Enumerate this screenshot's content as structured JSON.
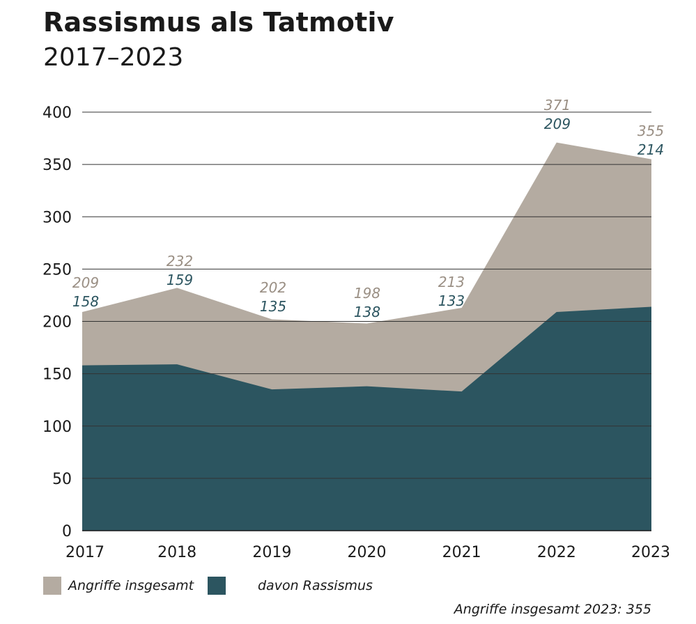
{
  "chart_data": {
    "type": "area",
    "title": "Rassismus als Tatmotiv",
    "subtitle": "2017–2023",
    "categories": [
      "2017",
      "2018",
      "2019",
      "2020",
      "2021",
      "2022",
      "2023"
    ],
    "series": [
      {
        "name": "Angriffe insgesamt",
        "values": [
          209,
          232,
          202,
          198,
          213,
          371,
          355
        ],
        "color": "#b4aba1",
        "label_color": "#9a8f84"
      },
      {
        "name": "davon Rassismus",
        "values": [
          158,
          159,
          135,
          138,
          133,
          209,
          214
        ],
        "color": "#2c5560",
        "label_color": "#2c5560"
      }
    ],
    "ylim": [
      0,
      400
    ],
    "yticks": [
      0,
      50,
      100,
      150,
      200,
      250,
      300,
      350,
      400
    ],
    "grid": true,
    "legend_position": "bottom-left",
    "footnote": "Angriffe insgesamt 2023: 355"
  }
}
